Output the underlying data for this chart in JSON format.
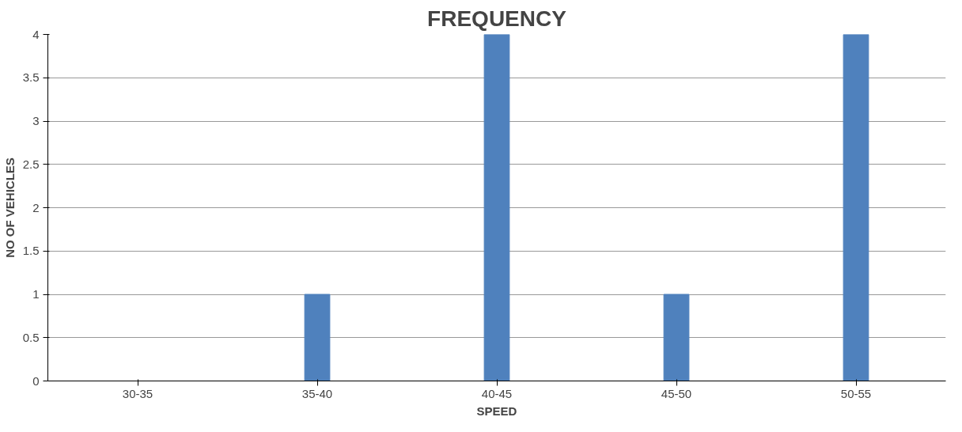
{
  "chart_data": {
    "type": "bar",
    "title": "FREQUENCY",
    "xlabel": "SPEED",
    "ylabel": "NO OF VEHICLES",
    "categories": [
      "30-35",
      "35-40",
      "40-45",
      "45-50",
      "50-55"
    ],
    "values": [
      0,
      1,
      4,
      1,
      4
    ],
    "color": "#4f81bd",
    "ylim": [
      0,
      4
    ],
    "yticks": [
      0,
      0.5,
      1,
      1.5,
      2,
      2.5,
      3,
      3.5,
      4
    ],
    "grid": "y"
  }
}
